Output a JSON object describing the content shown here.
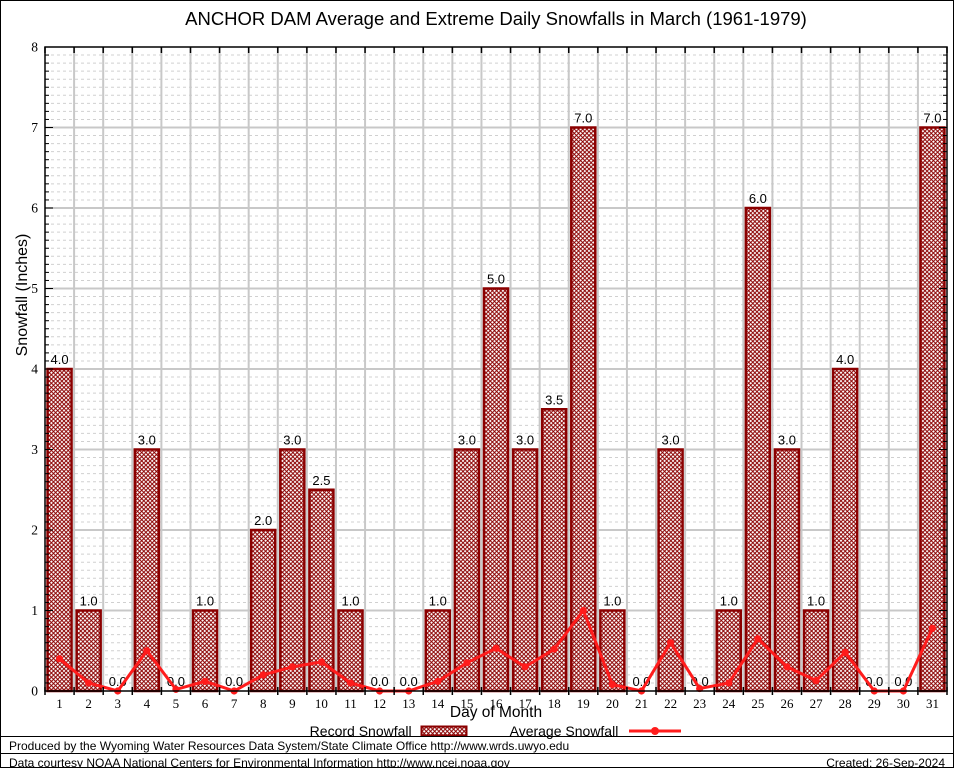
{
  "title": "ANCHOR DAM Average and Extreme Daily Snowfalls in March (1961-1979)",
  "y_axis": {
    "label": "Snowfall (Inches)",
    "min": 0,
    "max": 8,
    "major_step": 1,
    "minor_step": 0.1,
    "tick_labels": [
      "0",
      "1",
      "2",
      "3",
      "4",
      "5",
      "6",
      "7",
      "8"
    ]
  },
  "x_axis": {
    "label": "Day of Month",
    "categories": [
      "1",
      "2",
      "3",
      "4",
      "5",
      "6",
      "7",
      "8",
      "9",
      "10",
      "11",
      "12",
      "13",
      "14",
      "15",
      "16",
      "17",
      "18",
      "19",
      "20",
      "21",
      "22",
      "23",
      "24",
      "25",
      "26",
      "27",
      "28",
      "29",
      "30",
      "31"
    ]
  },
  "chart_data": {
    "type": "bar",
    "title": "ANCHOR DAM Average and Extreme Daily Snowfalls in March (1961-1979)",
    "xlabel": "Day of Month",
    "ylabel": "Snowfall (Inches)",
    "ylim": [
      0,
      8
    ],
    "grid": {
      "major_horizontal": "solid 1.0",
      "minor_horizontal": "dashed 0.1",
      "vertical": "solid per-day"
    },
    "legend_position": "bottom",
    "categories": [
      1,
      2,
      3,
      4,
      5,
      6,
      7,
      8,
      9,
      10,
      11,
      12,
      13,
      14,
      15,
      16,
      17,
      18,
      19,
      20,
      21,
      22,
      23,
      24,
      25,
      26,
      27,
      28,
      29,
      30,
      31
    ],
    "series": [
      {
        "name": "Record Snowfall",
        "type": "bar",
        "values": [
          4,
          1,
          0,
          3,
          0,
          1,
          0,
          2,
          3,
          2.5,
          1,
          0,
          0,
          1,
          3,
          5,
          3,
          3.5,
          7,
          1,
          0,
          3,
          0,
          1,
          6,
          3,
          1,
          4,
          0,
          0,
          7
        ],
        "labels": [
          "4.0",
          "1.0",
          "0.0",
          "3.0",
          "0.0",
          "1.0",
          "0.0",
          "2.0",
          "3.0",
          "2.5",
          "1.0",
          "0.0",
          "0.0",
          "1.0",
          "3.0",
          "5.0",
          "3.0",
          "3.5",
          "7.0",
          "1.0",
          "0.0",
          "3.0",
          "0.0",
          "1.0",
          "6.0",
          "3.0",
          "1.0",
          "4.0",
          "0.0",
          "0.0",
          "7.0"
        ]
      },
      {
        "name": "Average Snowfall",
        "type": "line",
        "values": [
          0.4,
          0.1,
          0.0,
          0.5,
          0.02,
          0.12,
          0.0,
          0.2,
          0.3,
          0.36,
          0.1,
          0.0,
          0.0,
          0.12,
          0.35,
          0.53,
          0.3,
          0.52,
          1.0,
          0.08,
          0.0,
          0.6,
          0.03,
          0.1,
          0.65,
          0.3,
          0.13,
          0.48,
          0.0,
          0.0,
          0.78
        ]
      }
    ]
  },
  "legend": {
    "items": [
      {
        "label": "Record Snowfall",
        "swatch": "hatched-bar"
      },
      {
        "label": "Average Snowfall",
        "swatch": "red-line-marker"
      }
    ]
  },
  "footer": {
    "line1": "Produced by the Wyoming Water Resources Data System/State Climate Office http://www.wrds.uwyo.edu",
    "line2": "Data courtesy NOAA National Centers for Environmental Information http://www.ncei.noaa.gov",
    "created": "Created: 26-Sep-2024"
  },
  "colors": {
    "bar_border": "#8b0000",
    "bar_hatch": "#8b0000",
    "bar_fill": "#ffffff",
    "line": "#ff1c1c",
    "grid_major": "#c8c8c8",
    "grid_minor": "#d0d0d0",
    "axis": "#000000",
    "text": "#000000"
  }
}
